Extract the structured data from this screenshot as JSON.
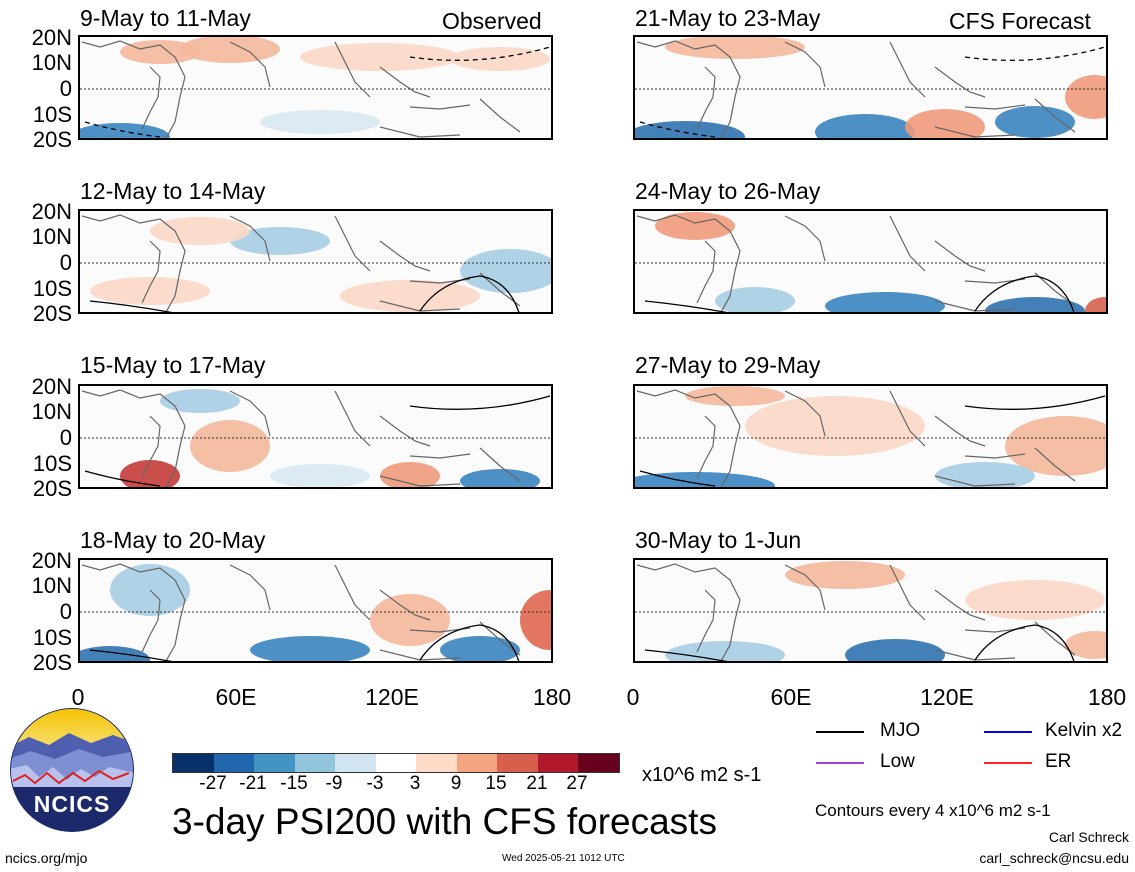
{
  "panels_left": [
    {
      "title": "9-May to 11-May",
      "label": "Observed"
    },
    {
      "title": "12-May to 14-May",
      "label": ""
    },
    {
      "title": "15-May to 17-May",
      "label": ""
    },
    {
      "title": "18-May to 20-May",
      "label": ""
    }
  ],
  "panels_right": [
    {
      "title": "21-May to 23-May",
      "label": "CFS Forecast"
    },
    {
      "title": "24-May to 26-May",
      "label": ""
    },
    {
      "title": "27-May to 29-May",
      "label": ""
    },
    {
      "title": "30-May to 1-Jun",
      "label": ""
    }
  ],
  "y_axis_labels": [
    "20N",
    "10N",
    "0",
    "10S",
    "20S"
  ],
  "x_axis_labels": [
    "0",
    "60E",
    "120E",
    "180"
  ],
  "colorbar": {
    "colors": [
      "#08306b",
      "#2166ac",
      "#4393c3",
      "#92c5de",
      "#d1e5f0",
      "#ffffff",
      "#fddbc7",
      "#f4a582",
      "#d6604d",
      "#b2182b",
      "#67001f"
    ],
    "tick_labels": [
      "-27",
      "-21",
      "-15",
      "-9",
      "-3",
      "3",
      "9",
      "15",
      "21",
      "27"
    ],
    "units": "x10^6 m2 s-1"
  },
  "title": "3-day PSI200 with CFS forecasts",
  "legend": [
    {
      "label": "MJO",
      "color": "#000000"
    },
    {
      "label": "Kelvin x2",
      "color": "#0000ff"
    },
    {
      "label": "Low",
      "color": "#a040e0"
    },
    {
      "label": "ER",
      "color": "#ff2020"
    }
  ],
  "contour_note": "Contours every 4 x10^6 m2 s-1",
  "logo_text": "NCICS",
  "author": "Carl Schreck",
  "email": "carl_schreck@ncsu.edu",
  "site": "ncics.org/mjo",
  "timestamp": "Wed 2025-05-21 1012 UTC"
}
